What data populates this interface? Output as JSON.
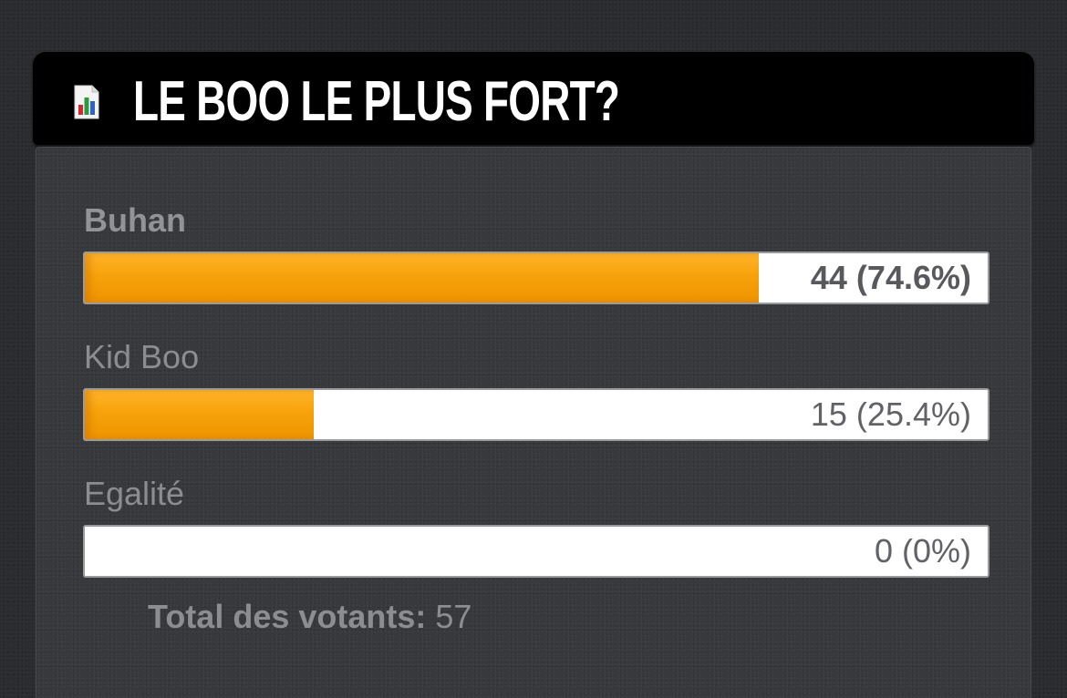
{
  "poll": {
    "title": "LE BOO LE PLUS FORT?",
    "icon": "bar-chart-icon",
    "options": [
      {
        "label": "Buhan",
        "votes": 44,
        "percent": 74.6,
        "result_text": "44 (74.6%)",
        "leading": true
      },
      {
        "label": "Kid Boo",
        "votes": 15,
        "percent": 25.4,
        "result_text": "15 (25.4%)",
        "leading": false
      },
      {
        "label": "Egalité",
        "votes": 0,
        "percent": 0,
        "result_text": "0 (0%)",
        "leading": false
      }
    ],
    "total_label": "Total des votants:",
    "total_value": "57"
  },
  "colors": {
    "bar_fill": "#f7a20a",
    "header_background": "#000000",
    "title_text": "#ffffff"
  }
}
